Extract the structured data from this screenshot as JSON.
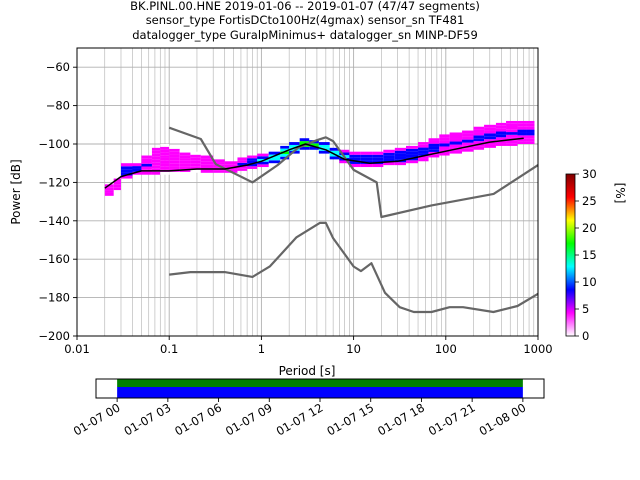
{
  "header": {
    "title_line1": "BK.PINL.00.HNE   2019-01-06 -- 2019-01-07  (47/47 segments)",
    "title_line2": "sensor_type FortisDCto100Hz(4gmax) sensor_sn TF481",
    "title_line3": "datalogger_type GuralpMinimus+ datalogger_sn MINP-DF59"
  },
  "chart_data": {
    "type": "heatmap",
    "xlabel": "Period [s]",
    "ylabel": "Power [dB]",
    "x_scale": "log",
    "xlim": [
      0.01,
      1000
    ],
    "ylim": [
      -200,
      -50
    ],
    "grid": true,
    "xtick_labels": [
      "0.01",
      "0.1",
      "1",
      "10",
      "100",
      "1000"
    ],
    "xtick_values": [
      0.01,
      0.1,
      1,
      10,
      100,
      1000
    ],
    "ytick_labels": [
      "−200",
      "−180",
      "−160",
      "−140",
      "−120",
      "−100",
      "−80",
      "−60"
    ],
    "ytick_values": [
      -200,
      -180,
      -160,
      -140,
      -120,
      -100,
      -80,
      -60
    ],
    "colorbar": {
      "label": "[%]",
      "range": [
        0,
        30
      ],
      "tick_labels": [
        "0",
        "5",
        "10",
        "15",
        "20",
        "25",
        "30"
      ],
      "tick_values": [
        0,
        5,
        10,
        15,
        20,
        25,
        30
      ],
      "colors": [
        "#ffffff",
        "#ff00ff",
        "#0000ff",
        "#00ffff",
        "#00ff00",
        "#ffff00",
        "#ff0000",
        "#800000"
      ]
    },
    "mode_line": [
      [
        0.02,
        -123
      ],
      [
        0.03,
        -117
      ],
      [
        0.05,
        -114
      ],
      [
        0.1,
        -114
      ],
      [
        0.2,
        -113
      ],
      [
        0.4,
        -113
      ],
      [
        0.7,
        -111
      ],
      [
        1.0,
        -109
      ],
      [
        2.0,
        -103
      ],
      [
        3.0,
        -100
      ],
      [
        5.0,
        -103
      ],
      [
        8.0,
        -108
      ],
      [
        15,
        -110
      ],
      [
        30,
        -109
      ],
      [
        60,
        -106
      ],
      [
        150,
        -102
      ],
      [
        300,
        -99
      ],
      [
        700,
        -97
      ]
    ],
    "nlnm": [
      [
        0.1,
        -168
      ],
      [
        0.17,
        -166.7
      ],
      [
        0.4,
        -166.7
      ],
      [
        0.8,
        -169.2
      ],
      [
        1.24,
        -163.7
      ],
      [
        2.4,
        -148.6
      ],
      [
        4.3,
        -141.1
      ],
      [
        5.0,
        -141.1
      ],
      [
        6.0,
        -149
      ],
      [
        10,
        -163.8
      ],
      [
        12,
        -166.2
      ],
      [
        15.6,
        -162.1
      ],
      [
        21.9,
        -177.5
      ],
      [
        31.6,
        -185
      ],
      [
        45,
        -187.5
      ],
      [
        70,
        -187.5
      ],
      [
        110,
        -185
      ],
      [
        154,
        -185
      ],
      [
        328,
        -187.5
      ],
      [
        600,
        -184.4
      ],
      [
        1000,
        -178
      ]
    ],
    "nhnm": [
      [
        0.1,
        -91.5
      ],
      [
        0.22,
        -97.4
      ],
      [
        0.32,
        -110.5
      ],
      [
        0.8,
        -120
      ],
      [
        1.5,
        -111
      ],
      [
        2.5,
        -102
      ],
      [
        4.0,
        -98
      ],
      [
        5.0,
        -96.5
      ],
      [
        6.0,
        -98.5
      ],
      [
        10,
        -113.5
      ],
      [
        17.8,
        -120
      ],
      [
        20,
        -138
      ],
      [
        70,
        -132
      ],
      [
        330,
        -126
      ],
      [
        1000,
        -111
      ]
    ],
    "density_columns": [
      {
        "x": 0.02,
        "lo": -127,
        "hi": -121,
        "p": 3
      },
      {
        "x": 0.025,
        "lo": -124,
        "hi": -118,
        "p": 3
      },
      {
        "x": 0.03,
        "lo": -118,
        "hi": -110,
        "p": 5
      },
      {
        "x": 0.04,
        "lo": -116,
        "hi": -110,
        "p": 5
      },
      {
        "x": 0.05,
        "lo": -116,
        "hi": -106,
        "p": 4
      },
      {
        "x": 0.065,
        "lo": -116,
        "hi": -102,
        "p": 3
      },
      {
        "x": 0.08,
        "lo": -116,
        "hi": -100,
        "p": 2
      },
      {
        "x": 0.1,
        "lo": -116,
        "hi": -101,
        "p": 2
      },
      {
        "x": 0.13,
        "lo": -116,
        "hi": -103,
        "p": 2
      },
      {
        "x": 0.17,
        "lo": -115,
        "hi": -104,
        "p": 2
      },
      {
        "x": 0.22,
        "lo": -115,
        "hi": -106,
        "p": 3
      },
      {
        "x": 0.3,
        "lo": -115,
        "hi": -108,
        "p": 3
      },
      {
        "x": 0.4,
        "lo": -115,
        "hi": -109,
        "p": 4
      },
      {
        "x": 0.55,
        "lo": -114,
        "hi": -107,
        "p": 4
      },
      {
        "x": 0.7,
        "lo": -113,
        "hi": -106,
        "p": 6
      },
      {
        "x": 0.9,
        "lo": -112,
        "hi": -105,
        "p": 7
      },
      {
        "x": 1.2,
        "lo": -110,
        "hi": -104,
        "p": 8
      },
      {
        "x": 1.6,
        "lo": -108,
        "hi": -101,
        "p": 9
      },
      {
        "x": 2.0,
        "lo": -105,
        "hi": -99,
        "p": 10
      },
      {
        "x": 2.6,
        "lo": -103,
        "hi": -97,
        "p": 11
      },
      {
        "x": 3.3,
        "lo": -103,
        "hi": -98,
        "p": 10
      },
      {
        "x": 4.2,
        "lo": -105,
        "hi": -99,
        "p": 9
      },
      {
        "x": 5.5,
        "lo": -108,
        "hi": -102,
        "p": 8
      },
      {
        "x": 7.0,
        "lo": -110,
        "hi": -103,
        "p": 7
      },
      {
        "x": 9.0,
        "lo": -112,
        "hi": -104,
        "p": 6
      },
      {
        "x": 12,
        "lo": -112,
        "hi": -104,
        "p": 6
      },
      {
        "x": 16,
        "lo": -112,
        "hi": -104,
        "p": 6
      },
      {
        "x": 21,
        "lo": -111,
        "hi": -103,
        "p": 6
      },
      {
        "x": 28,
        "lo": -111,
        "hi": -102,
        "p": 6
      },
      {
        "x": 37,
        "lo": -110,
        "hi": -101,
        "p": 6
      },
      {
        "x": 50,
        "lo": -109,
        "hi": -99,
        "p": 5
      },
      {
        "x": 65,
        "lo": -107,
        "hi": -97,
        "p": 5
      },
      {
        "x": 85,
        "lo": -106,
        "hi": -95,
        "p": 4
      },
      {
        "x": 110,
        "lo": -105,
        "hi": -94,
        "p": 4
      },
      {
        "x": 150,
        "lo": -104,
        "hi": -93,
        "p": 4
      },
      {
        "x": 200,
        "lo": -103,
        "hi": -91,
        "p": 4
      },
      {
        "x": 260,
        "lo": -102,
        "hi": -90,
        "p": 4
      },
      {
        "x": 350,
        "lo": -101,
        "hi": -89,
        "p": 4
      },
      {
        "x": 450,
        "lo": -101,
        "hi": -88,
        "p": 4
      },
      {
        "x": 600,
        "lo": -100,
        "hi": -88,
        "p": 4
      },
      {
        "x": 750,
        "lo": -100,
        "hi": -88,
        "p": 4
      }
    ]
  },
  "timeline": {
    "tick_labels": [
      "01-07 00",
      "01-07 03",
      "01-07 06",
      "01-07 09",
      "01-07 12",
      "01-07 15",
      "01-07 18",
      "01-07 21",
      "01-08 00"
    ],
    "tick_hours": [
      0,
      3,
      6,
      9,
      12,
      15,
      18,
      21,
      24
    ],
    "xlim_hours": [
      -1.25,
      25.25
    ],
    "coverage_hours": [
      0,
      24
    ],
    "bar_colors": {
      "top": "#008000",
      "bottom": "#0000ff"
    }
  }
}
